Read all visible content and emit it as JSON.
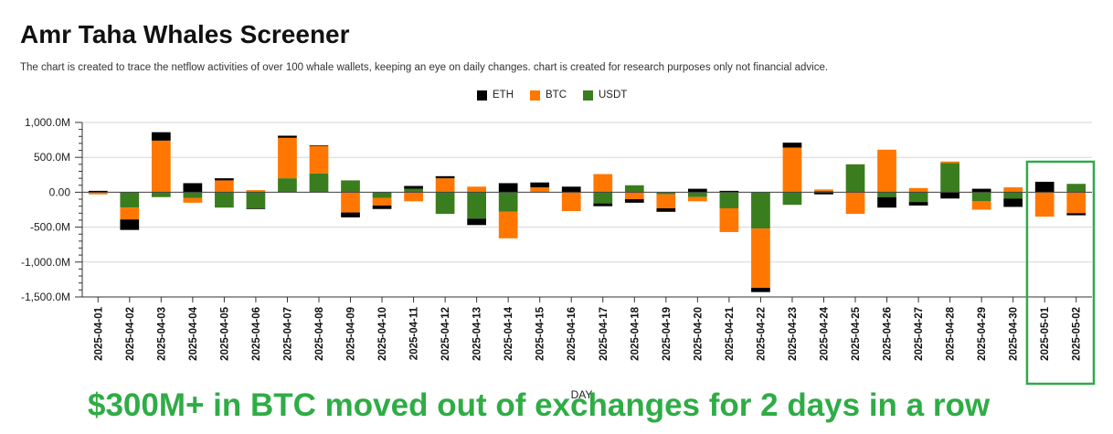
{
  "header": {
    "title": "Amr Taha Whales Screener",
    "subtitle": "The chart is created to trace the netflow activities of over 100 whale wallets, keeping an eye on daily changes.  chart is created for research purposes only not financial advice."
  },
  "caption": "$300M+ in BTC moved out of exchanges for 2 days in a row",
  "colors": {
    "ETH": "#000000",
    "BTC": "#ff7700",
    "USDT": "#3a7d1e",
    "highlight": "#2faa4a"
  },
  "chart_data": {
    "type": "bar",
    "stacked": true,
    "xlabel": "DAY",
    "ylabel": "",
    "ylim": [
      -1500,
      1000
    ],
    "yticks": [
      -1500,
      -1000,
      -500,
      0,
      500,
      1000
    ],
    "ytick_labels": [
      "-1,500.0M",
      "-1,000.0M",
      "-500.0M",
      "0.00",
      "500.0M",
      "1,000.0M"
    ],
    "legend_position": "top-center",
    "grid": true,
    "categories": [
      "2025-04-01",
      "2025-04-02",
      "2025-04-03",
      "2025-04-04",
      "2025-04-05",
      "2025-04-06",
      "2025-04-07",
      "2025-04-08",
      "2025-04-09",
      "2025-04-10",
      "2025-04-11",
      "2025-04-12",
      "2025-04-13",
      "2025-04-14",
      "2025-04-15",
      "2025-04-16",
      "2025-04-17",
      "2025-04-18",
      "2025-04-19",
      "2025-04-20",
      "2025-04-21",
      "2025-04-22",
      "2025-04-23",
      "2025-04-24",
      "2025-04-25",
      "2025-04-26",
      "2025-04-27",
      "2025-04-28",
      "2025-04-29",
      "2025-04-30",
      "2025-05-01",
      "2025-05-02"
    ],
    "series": [
      {
        "name": "USDT",
        "values": [
          0,
          -220,
          -70,
          -80,
          -220,
          -230,
          200,
          270,
          170,
          -80,
          50,
          -310,
          -380,
          -280,
          0,
          0,
          -160,
          100,
          -30,
          -70,
          -230,
          -520,
          -180,
          20,
          400,
          -70,
          -140,
          420,
          -130,
          -90,
          0,
          120
        ]
      },
      {
        "name": "BTC",
        "values": [
          -30,
          -170,
          740,
          -70,
          170,
          30,
          580,
          390,
          -290,
          -110,
          -130,
          200,
          80,
          -380,
          70,
          -270,
          260,
          -100,
          -200,
          -60,
          -340,
          -850,
          640,
          20,
          -310,
          610,
          60,
          20,
          -120,
          70,
          -350,
          -300
        ]
      },
      {
        "name": "ETH",
        "values": [
          20,
          -150,
          120,
          130,
          30,
          -10,
          30,
          10,
          -70,
          -50,
          40,
          30,
          -90,
          130,
          70,
          80,
          -40,
          -50,
          -50,
          50,
          20,
          -60,
          70,
          -30,
          0,
          -150,
          -50,
          -90,
          50,
          -120,
          150,
          -30
        ]
      }
    ],
    "highlight_categories": [
      "2025-05-01",
      "2025-05-02"
    ]
  }
}
